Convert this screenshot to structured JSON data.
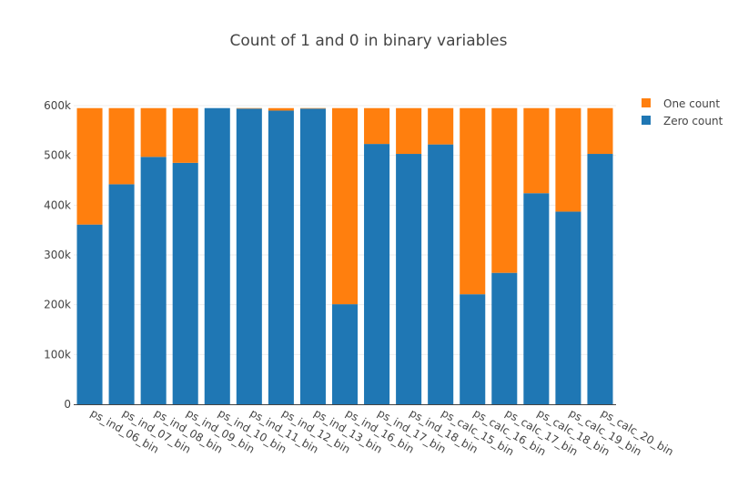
{
  "chart_data": {
    "type": "bar",
    "stacked": true,
    "title": "Count of 1 and 0 in binary variables",
    "xlabel": "",
    "ylabel": "",
    "categories": [
      "ps_ind_06_bin",
      "ps_ind_07_bin",
      "ps_ind_08_bin",
      "ps_ind_09_bin",
      "ps_ind_10_bin",
      "ps_ind_11_bin",
      "ps_ind_12_bin",
      "ps_ind_13_bin",
      "ps_ind_16_bin",
      "ps_ind_17_bin",
      "ps_ind_18_bin",
      "ps_calc_15_bin",
      "ps_calc_16_bin",
      "ps_calc_17_bin",
      "ps_calc_18_bin",
      "ps_calc_19_bin",
      "ps_calc_20_bin"
    ],
    "series": [
      {
        "name": "Zero count",
        "color": "#1f77b4",
        "values": [
          361000,
          442000,
          497000,
          485000,
          595000,
          594000,
          590000,
          594000,
          201000,
          523000,
          503000,
          522000,
          221000,
          264000,
          424000,
          387000,
          503000
        ]
      },
      {
        "name": "One count",
        "color": "#ff7f0e",
        "values": [
          234000,
          153000,
          98000,
          110000,
          0,
          1000,
          5000,
          1000,
          394000,
          72000,
          92000,
          73000,
          374000,
          331000,
          171000,
          208000,
          92000
        ]
      }
    ],
    "ylim": [
      0,
      600000
    ],
    "yticks": [
      0,
      100000,
      200000,
      300000,
      400000,
      500000,
      600000
    ],
    "ytick_labels": [
      "0",
      "100k",
      "200k",
      "300k",
      "400k",
      "500k",
      "600k"
    ],
    "legend_position": "top-right",
    "legend": [
      "One count",
      "Zero count"
    ],
    "grid": true
  }
}
